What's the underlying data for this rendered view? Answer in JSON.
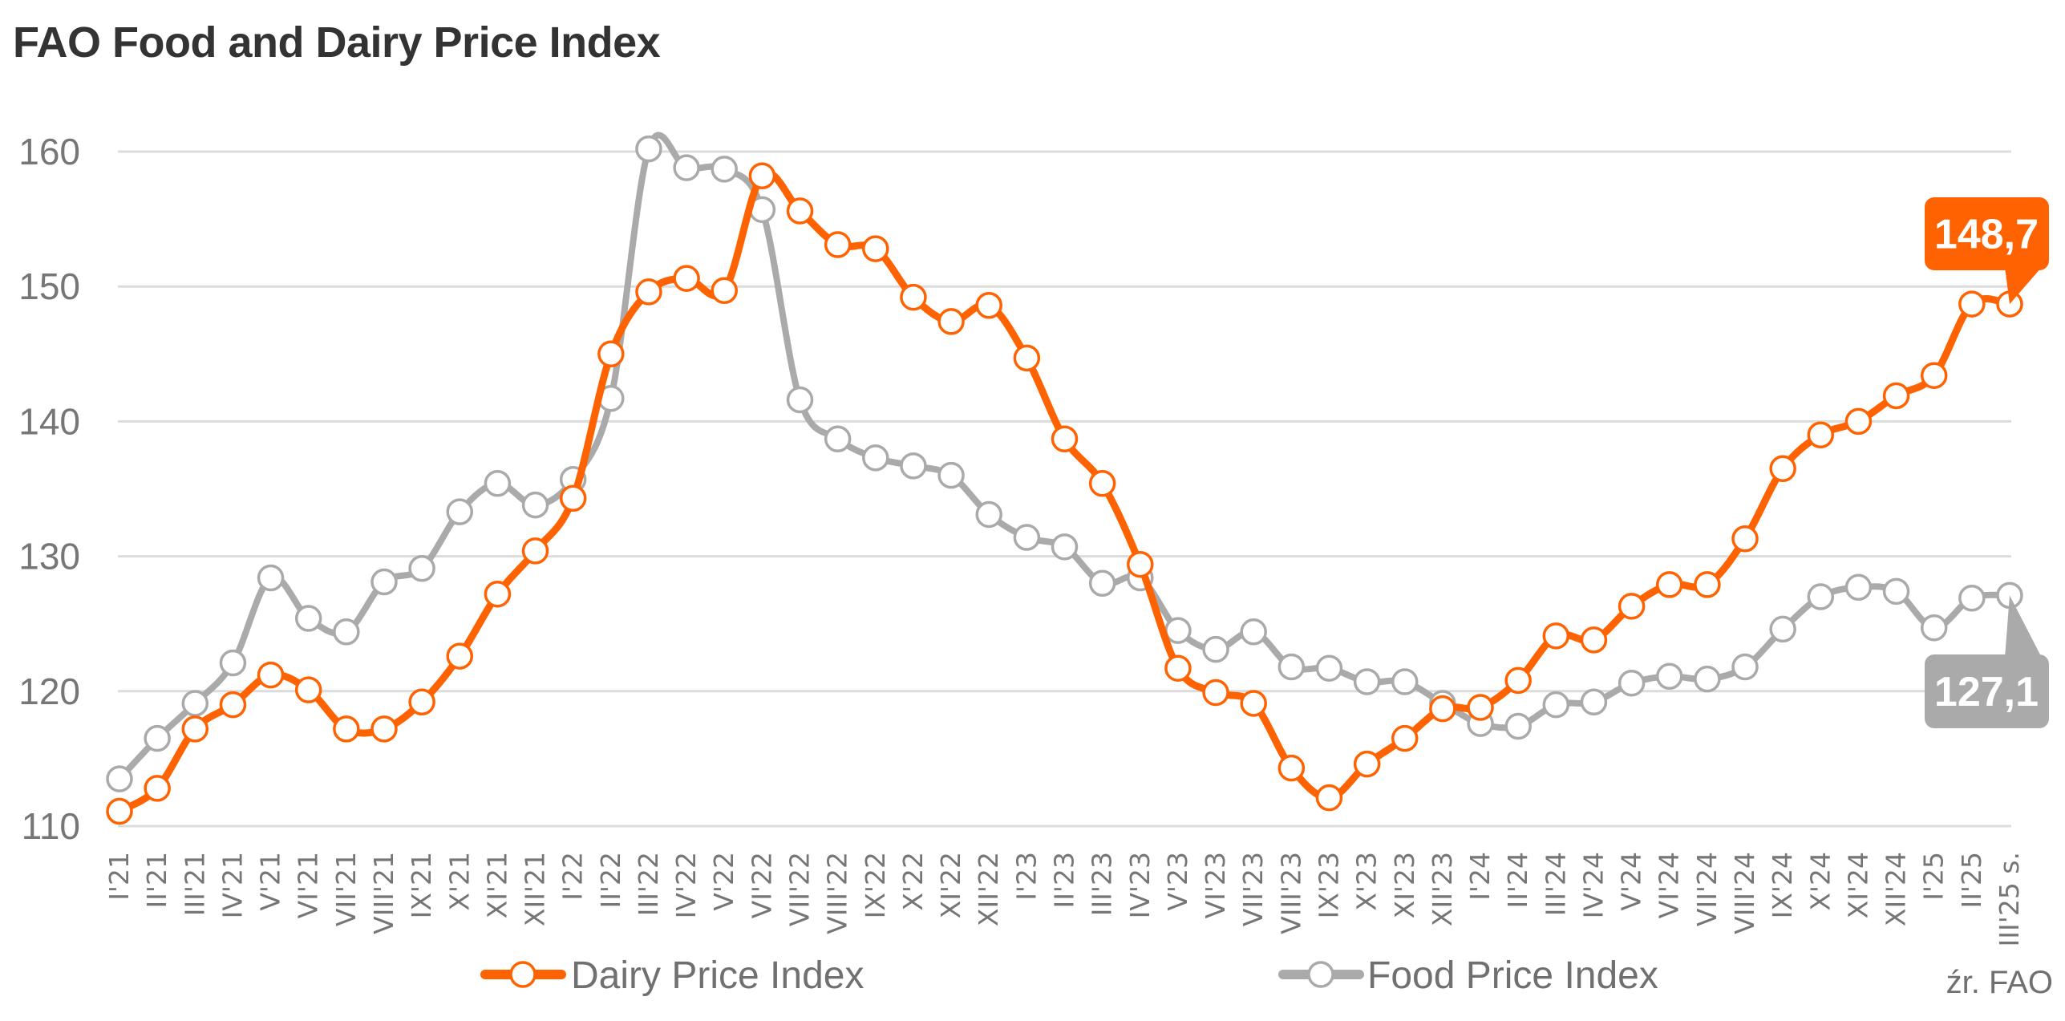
{
  "chart_data": {
    "type": "line",
    "title": "FAO Food and Dairy Price Index",
    "xlabel": "",
    "ylabel": "",
    "ylim": [
      110,
      160
    ],
    "yticks": [
      "110",
      "120",
      "130",
      "140",
      "150",
      "160"
    ],
    "ytick_values": [
      110,
      120,
      130,
      140,
      150,
      160
    ],
    "grid": true,
    "legend_position": "bottom",
    "categories": [
      "I'21",
      "II'21",
      "III'21",
      "IV'21",
      "V'21",
      "VI'21",
      "VII'21",
      "VIII'21",
      "IX'21",
      "X'21",
      "XI'21",
      "XII'21",
      "I'22",
      "II'22",
      "III'22",
      "IV'22",
      "V'22",
      "VI'22",
      "VII'22",
      "VIII'22",
      "IX'22",
      "X'22",
      "XI'22",
      "XII'22",
      "I'23",
      "II'23",
      "III'23",
      "IV'23",
      "V'23",
      "VI'23",
      "VII'23",
      "VIII'23",
      "IX'23",
      "X'23",
      "XI'23",
      "XII'23",
      "I'24",
      "II'24",
      "III'24",
      "IV'24",
      "V'24",
      "VI'24",
      "VII'24",
      "VIII'24",
      "IX'24",
      "X'24",
      "XI'24",
      "XII'24",
      "I'25",
      "II'25",
      "III'25 s."
    ],
    "series": [
      {
        "name": "Dairy Price Index",
        "color": "#FF6200",
        "values": [
          111.1,
          112.8,
          117.2,
          119.0,
          121.2,
          120.1,
          117.2,
          117.2,
          119.2,
          122.6,
          127.2,
          130.4,
          134.3,
          145.0,
          149.6,
          150.6,
          149.7,
          158.2,
          155.6,
          153.1,
          152.8,
          149.2,
          147.4,
          148.6,
          144.7,
          138.7,
          135.4,
          129.4,
          121.7,
          119.9,
          119.1,
          114.3,
          112.1,
          114.6,
          116.5,
          118.7,
          118.8,
          120.8,
          124.1,
          123.8,
          126.3,
          127.9,
          127.9,
          131.3,
          136.5,
          139.0,
          140.0,
          141.9,
          143.4,
          148.7,
          148.7
        ],
        "last_label": "148,7"
      },
      {
        "name": "Food Price Index",
        "color": "#AAAAAA",
        "values": [
          113.5,
          116.5,
          119.1,
          122.1,
          128.4,
          125.4,
          124.4,
          128.1,
          129.1,
          133.3,
          135.4,
          133.8,
          135.7,
          141.7,
          160.2,
          158.8,
          158.7,
          155.7,
          141.6,
          138.7,
          137.3,
          136.7,
          136.0,
          133.1,
          131.4,
          130.7,
          128.0,
          128.4,
          124.5,
          123.1,
          124.4,
          121.8,
          121.7,
          120.7,
          120.7,
          119.1,
          117.6,
          117.4,
          119.0,
          119.2,
          120.6,
          121.1,
          120.9,
          121.8,
          124.6,
          127.0,
          127.7,
          127.4,
          124.7,
          126.9,
          127.1
        ],
        "last_label": "127,1"
      }
    ],
    "source": "źr. FAO"
  }
}
